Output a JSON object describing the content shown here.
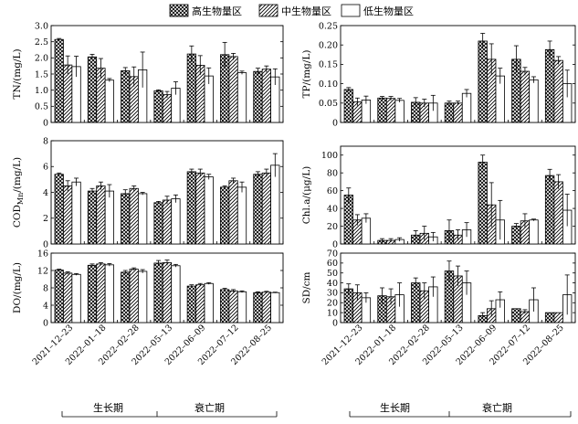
{
  "legend": [
    {
      "name": "高生物量区",
      "pattern": "cross"
    },
    {
      "name": "中生物量区",
      "pattern": "diag"
    },
    {
      "name": "低生物量区",
      "pattern": "none"
    }
  ],
  "x_categories": [
    "2021–12–23",
    "2022–01–18",
    "2022–02–28",
    "2022–05–13",
    "2022–06–09",
    "2022–07–12",
    "2022–08–25"
  ],
  "periods": [
    {
      "label": "生长期",
      "from": 0,
      "to": 3
    },
    {
      "label": "衰亡期",
      "from": 4,
      "to": 6
    }
  ],
  "chart_data": [
    {
      "type": "bar",
      "ylabel": "TN/(mg/L)",
      "ylim": [
        0,
        3.0
      ],
      "yticks": [
        0,
        0.5,
        1.0,
        1.5,
        2.0,
        2.5,
        3.0
      ],
      "ytick_labels": [
        "0",
        "0.5",
        "1.0",
        "1.5",
        "2.0",
        "2.5",
        "3.0"
      ],
      "series": [
        {
          "name": "高生物量区",
          "values": [
            2.57,
            2.03,
            1.6,
            0.98,
            2.12,
            2.1,
            1.58
          ],
          "errors": [
            0.03,
            0.08,
            0.1,
            0.03,
            0.25,
            0.38,
            0.1
          ]
        },
        {
          "name": "中生物量区",
          "values": [
            1.78,
            1.68,
            1.42,
            0.86,
            1.77,
            2.04,
            1.65
          ],
          "errors": [
            0.28,
            0.3,
            0.3,
            0.1,
            0.3,
            0.1,
            0.1
          ]
        },
        {
          "name": "低生物量区",
          "values": [
            1.73,
            1.31,
            1.63,
            1.06,
            1.44,
            1.54,
            1.41
          ],
          "errors": [
            0.32,
            0.05,
            0.55,
            0.2,
            0.25,
            0.05,
            0.25
          ]
        }
      ]
    },
    {
      "type": "bar",
      "ylabel": "TP/(mg/L)",
      "ylim": [
        0,
        0.25
      ],
      "yticks": [
        0,
        0.05,
        0.1,
        0.15,
        0.2,
        0.25
      ],
      "ytick_labels": [
        "0",
        "0.05",
        "0.10",
        "0.15",
        "0.20",
        "0.25"
      ],
      "series": [
        {
          "name": "高生物量区",
          "values": [
            0.085,
            0.063,
            0.052,
            0.05,
            0.21,
            0.163,
            0.188
          ],
          "errors": [
            0.005,
            0.004,
            0.012,
            0.005,
            0.02,
            0.035,
            0.022
          ]
        },
        {
          "name": "中生物量区",
          "values": [
            0.053,
            0.062,
            0.05,
            0.05,
            0.163,
            0.132,
            0.16
          ],
          "errors": [
            0.01,
            0.005,
            0.01,
            0.005,
            0.04,
            0.01,
            0.01
          ]
        },
        {
          "name": "低生物量区",
          "values": [
            0.058,
            0.057,
            0.05,
            0.075,
            0.12,
            0.11,
            0.1
          ],
          "errors": [
            0.01,
            0.005,
            0.02,
            0.01,
            0.02,
            0.008,
            0.035
          ]
        }
      ]
    },
    {
      "type": "bar",
      "ylabel": "COD_Mn/(mg/L)",
      "ylim": [
        0,
        8
      ],
      "yticks": [
        0,
        2,
        4,
        6,
        8
      ],
      "ytick_labels": [
        "0",
        "2",
        "4",
        "6",
        "8"
      ],
      "series": [
        {
          "name": "高生物量区",
          "values": [
            5.4,
            4.1,
            3.9,
            3.2,
            5.6,
            4.4,
            5.4
          ],
          "errors": [
            0.1,
            0.2,
            0.3,
            0.1,
            0.2,
            0.1,
            0.2
          ]
        },
        {
          "name": "中生物量区",
          "values": [
            4.5,
            4.5,
            4.3,
            3.4,
            5.5,
            4.9,
            5.5
          ],
          "errors": [
            0.4,
            0.3,
            0.2,
            0.3,
            0.3,
            0.2,
            0.3
          ]
        },
        {
          "name": "低生物量区",
          "values": [
            4.8,
            4.1,
            3.9,
            3.5,
            5.2,
            4.4,
            6.1
          ],
          "errors": [
            0.3,
            0.5,
            0.1,
            0.3,
            0.2,
            0.4,
            0.9
          ]
        }
      ]
    },
    {
      "type": "bar",
      "ylabel": "Chl.a/(μg/L)",
      "ylim": [
        0,
        110
      ],
      "yticks": [
        0,
        20,
        40,
        60,
        80,
        100
      ],
      "ytick_labels": [
        "0",
        "20",
        "40",
        "60",
        "80",
        "100"
      ],
      "series": [
        {
          "name": "高生物量区",
          "values": [
            55,
            4,
            10,
            15,
            92,
            20,
            77
          ],
          "errors": [
            8,
            2,
            5,
            12,
            8,
            3,
            7
          ]
        },
        {
          "name": "中生物量区",
          "values": [
            27,
            4,
            12,
            10,
            44,
            26,
            70
          ],
          "errors": [
            6,
            2,
            8,
            6,
            25,
            8,
            8
          ]
        },
        {
          "name": "低生物量区",
          "values": [
            29,
            5,
            8,
            16,
            27,
            27,
            38
          ],
          "errors": [
            5,
            2,
            5,
            8,
            22,
            1,
            18
          ]
        }
      ]
    },
    {
      "type": "bar",
      "ylabel": "DO/(mg/L)",
      "ylim": [
        0,
        16
      ],
      "yticks": [
        0,
        4,
        8,
        12,
        16
      ],
      "ytick_labels": [
        "0",
        "4",
        "8",
        "12",
        "16"
      ],
      "series": [
        {
          "name": "高生物量区",
          "values": [
            12.1,
            13.2,
            11.6,
            13.7,
            8.4,
            7.6,
            6.9
          ],
          "errors": [
            0.2,
            0.3,
            0.4,
            0.6,
            0.3,
            0.3,
            0.2
          ]
        },
        {
          "name": "中生物量区",
          "values": [
            11.4,
            13.5,
            12.3,
            13.8,
            8.7,
            7.3,
            7.0
          ],
          "errors": [
            0.3,
            0.3,
            0.3,
            0.6,
            0.3,
            0.3,
            0.2
          ]
        },
        {
          "name": "低生物量区",
          "values": [
            11.1,
            13.3,
            11.8,
            13.1,
            9.0,
            7.1,
            6.9
          ],
          "errors": [
            0.2,
            0.3,
            0.4,
            0.3,
            0.2,
            0.2,
            0.1
          ]
        }
      ]
    },
    {
      "type": "bar",
      "ylabel": "SD/cm",
      "ylim": [
        0,
        70
      ],
      "yticks": [
        0,
        10,
        20,
        30,
        40,
        50,
        60,
        70
      ],
      "ytick_labels": [
        "0",
        "10",
        "20",
        "30",
        "40",
        "50",
        "60",
        "70"
      ],
      "series": [
        {
          "name": "高生物量区",
          "values": [
            34,
            27,
            40,
            52,
            7,
            14,
            10
          ],
          "errors": [
            5,
            8,
            5,
            10,
            3,
            0,
            0
          ]
        },
        {
          "name": "中生物量区",
          "values": [
            30,
            26,
            32,
            47,
            14,
            11,
            10
          ],
          "errors": [
            8,
            8,
            8,
            10,
            8,
            2,
            0
          ]
        },
        {
          "name": "低生物量区",
          "values": [
            25,
            28,
            36,
            40,
            23,
            23,
            28
          ],
          "errors": [
            5,
            12,
            10,
            12,
            8,
            12,
            20
          ]
        }
      ]
    }
  ]
}
